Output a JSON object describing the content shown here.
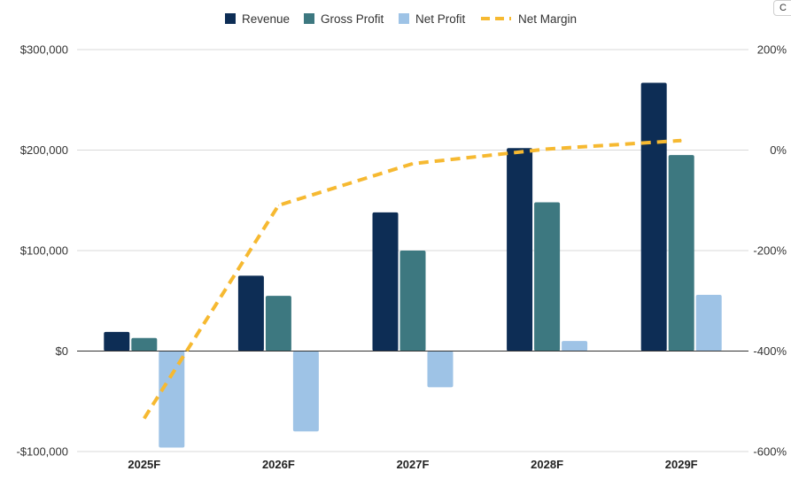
{
  "corner_fragment": "C",
  "colors": {
    "revenue": "#0d2d55",
    "gross_profit": "#3d7880",
    "net_profit": "#9ec3e6",
    "net_margin": "#f6b931",
    "grid": "#d9d9d9",
    "zero_line": "#333333",
    "text": "#333333"
  },
  "chart_data": {
    "type": "bar",
    "title": "",
    "xlabel": "",
    "ylabel": "",
    "categories": [
      "2025F",
      "2026F",
      "2027F",
      "2028F",
      "2029F"
    ],
    "series": [
      {
        "name": "Revenue",
        "type": "bar",
        "values": [
          19000,
          75000,
          138000,
          202000,
          267000
        ]
      },
      {
        "name": "Gross Profit",
        "type": "bar",
        "values": [
          13000,
          55000,
          100000,
          148000,
          195000
        ]
      },
      {
        "name": "Net Profit",
        "type": "bar",
        "values": [
          -96000,
          -80000,
          -36000,
          10000,
          56000
        ]
      },
      {
        "name": "Net Margin",
        "type": "line",
        "axis": "right",
        "style": "dashed",
        "values": [
          -534,
          -110,
          -27,
          2,
          19
        ]
      }
    ],
    "ylim": [
      -100000,
      300000
    ],
    "yticks": [
      -100000,
      0,
      100000,
      200000,
      300000
    ],
    "ytick_labels": [
      "-$100,000",
      "$0",
      "$100,000",
      "$200,000",
      "$300,000"
    ],
    "y2lim": [
      -600,
      200
    ],
    "y2ticks": [
      -600,
      -400,
      -200,
      0,
      200
    ],
    "y2tick_labels": [
      "-600%",
      "-400%",
      "-200%",
      "0%",
      "200%"
    ],
    "legend": {
      "position": "top-center",
      "entries": [
        "Revenue",
        "Gross Profit",
        "Net Profit",
        "Net Margin"
      ]
    },
    "grid": true
  }
}
